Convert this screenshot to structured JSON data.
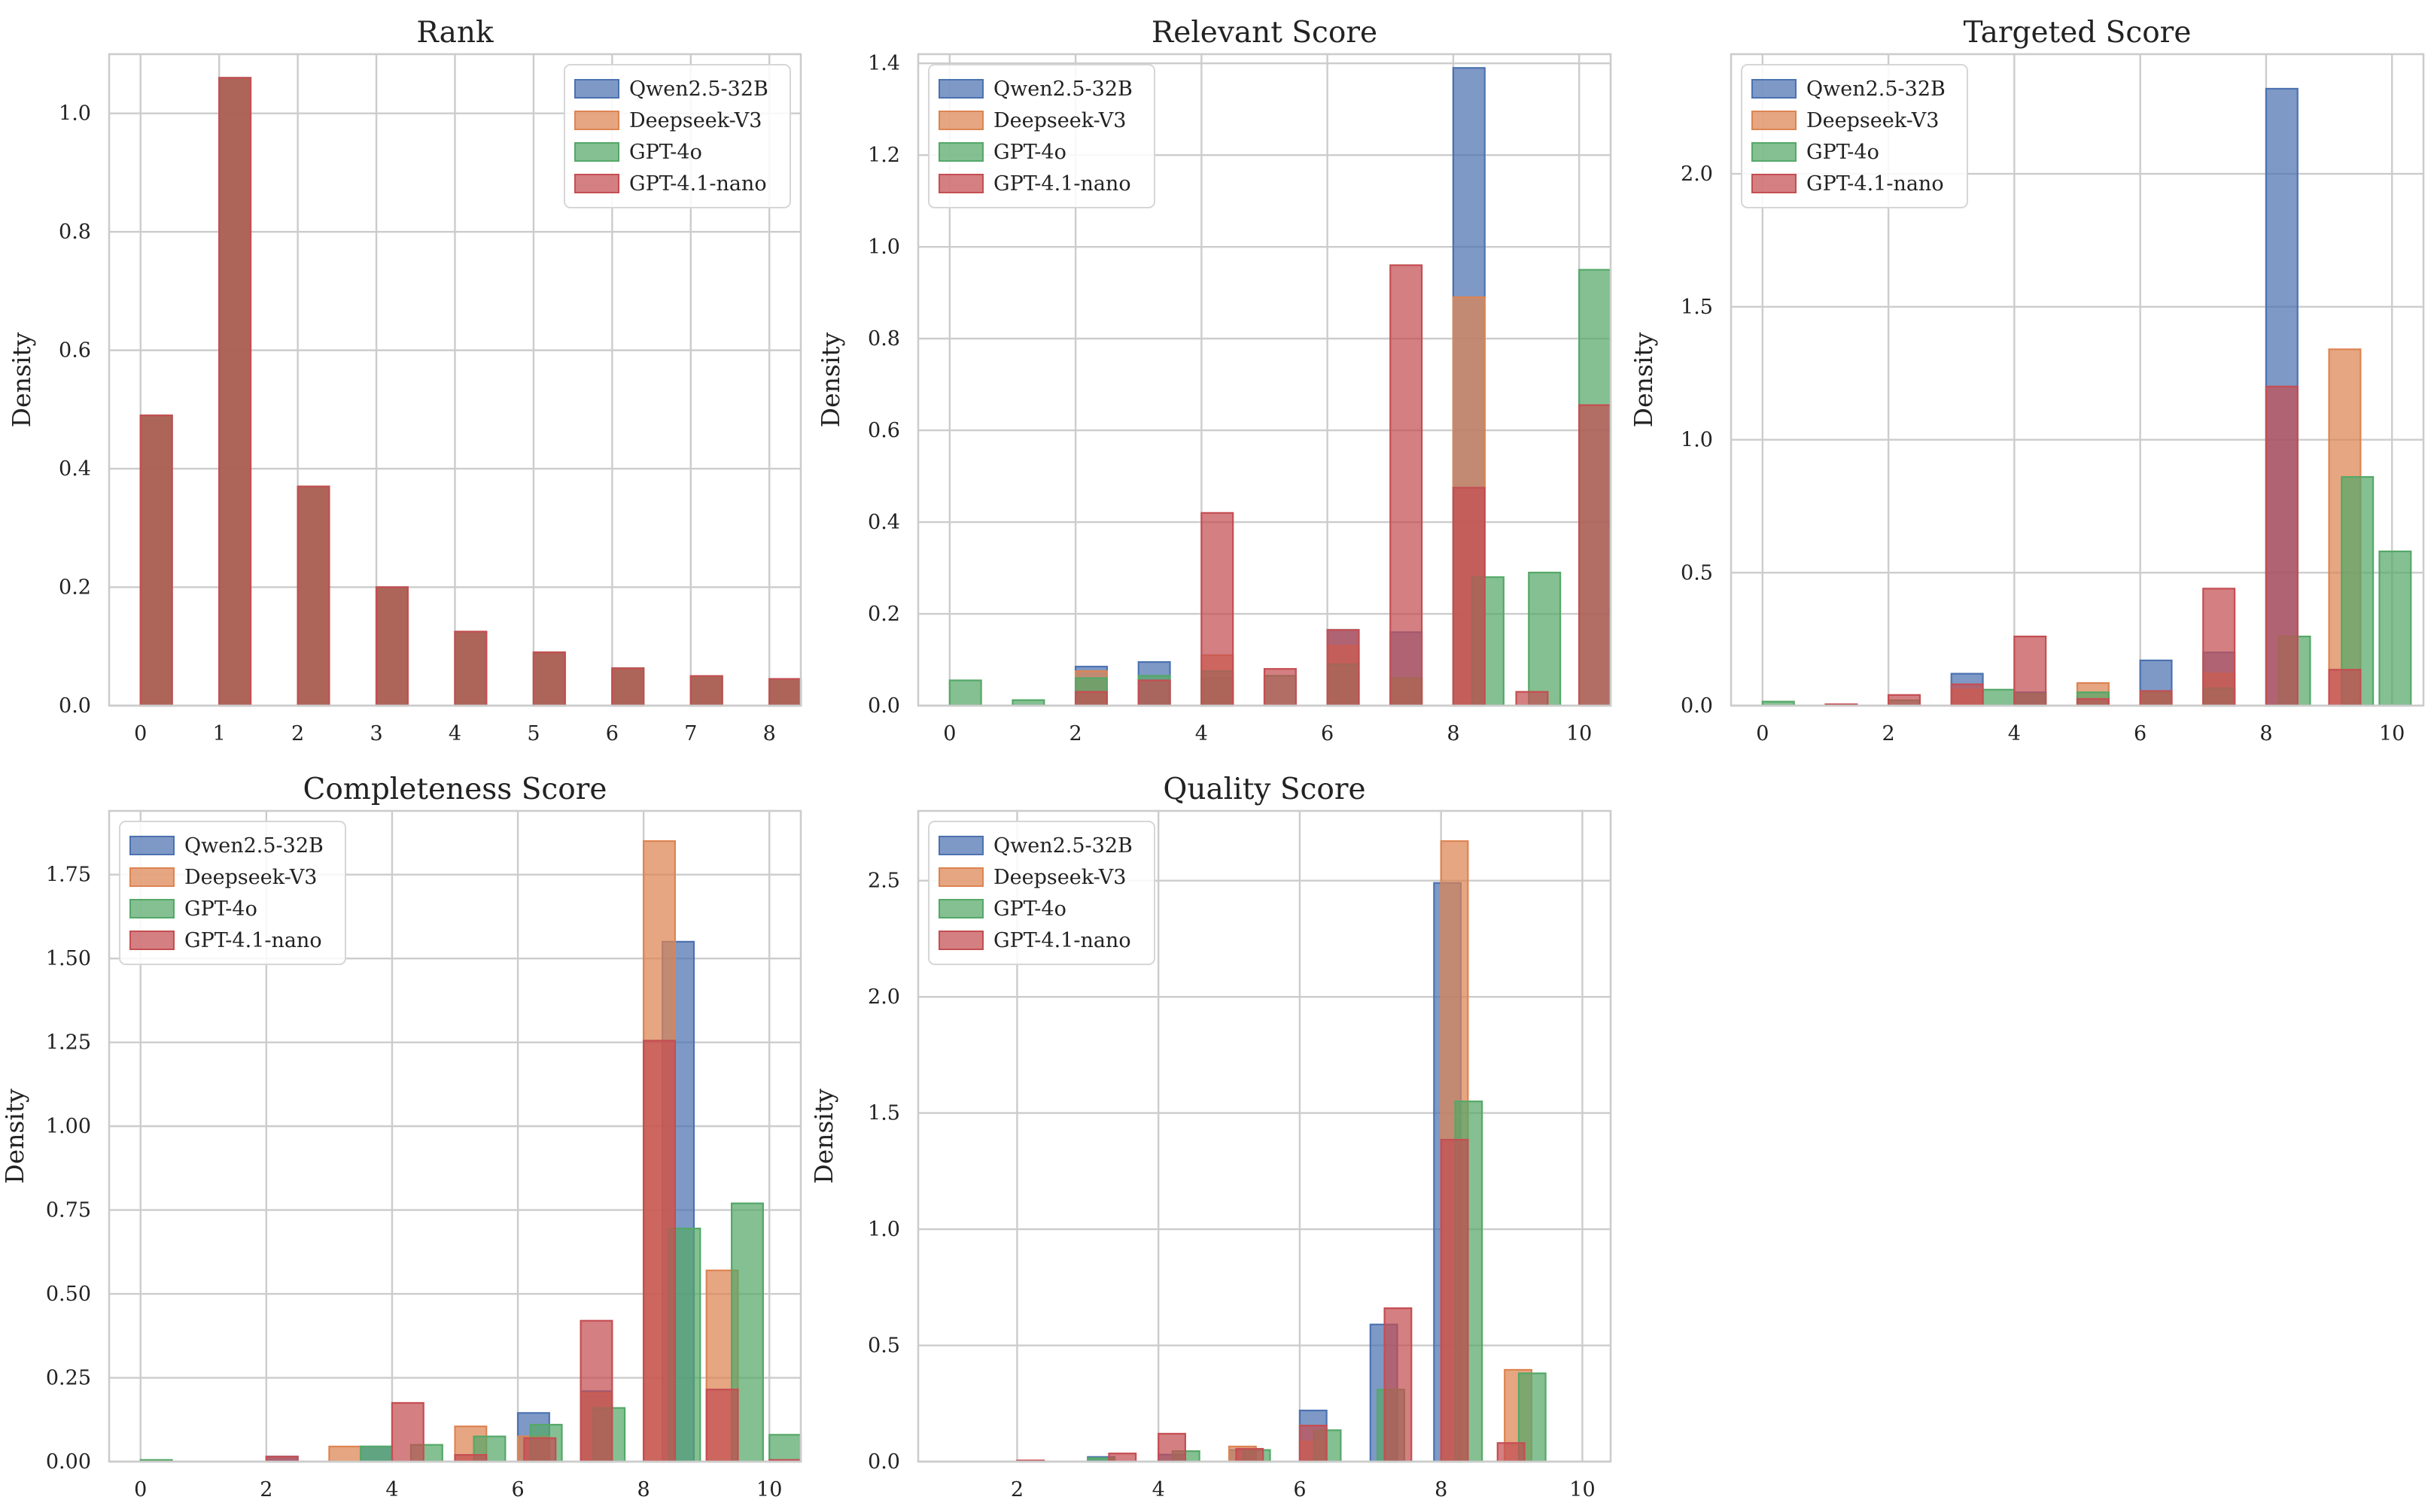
{
  "colors": {
    "Qwen2.5-32B": "#4c72b0",
    "Deepseek-V3": "#dd8452",
    "GPT-4o": "#55a868",
    "GPT-4.1-nano": "#c44e52",
    "grid": "#cccccc",
    "background": "#ffffff"
  },
  "legend_labels": [
    "Qwen2.5-32B",
    "Deepseek-V3",
    "GPT-4o",
    "GPT-4.1-nano"
  ],
  "chart_data": [
    {
      "type": "bar",
      "title": "Rank",
      "xlabel": "",
      "ylabel": "Density",
      "xlim": [
        -0.4,
        8.4
      ],
      "ylim": [
        0,
        1.1
      ],
      "xticks": [
        0,
        1,
        2,
        3,
        4,
        5,
        6,
        7,
        8
      ],
      "yticks": [
        0.0,
        0.2,
        0.4,
        0.6,
        0.8,
        1.0
      ],
      "ytick_labels": [
        "0.0",
        "0.2",
        "0.4",
        "0.6",
        "0.8",
        "1.0"
      ],
      "legend": "top-right",
      "bin_width": 0.4,
      "series": [
        {
          "name": "Qwen2.5-32B",
          "x": [
            0,
            1,
            2,
            3,
            4,
            5,
            6,
            7,
            8
          ],
          "values": [
            0.49,
            1.06,
            0.37,
            0.2,
            0.125,
            0.09,
            0.063,
            0.05,
            0.045
          ]
        },
        {
          "name": "Deepseek-V3",
          "x": [
            0,
            1,
            2,
            3,
            4,
            5,
            6,
            7,
            8
          ],
          "values": [
            0.49,
            1.06,
            0.37,
            0.2,
            0.125,
            0.09,
            0.063,
            0.05,
            0.045
          ]
        },
        {
          "name": "GPT-4o",
          "x": [
            0,
            1,
            2,
            3,
            4,
            5,
            6,
            7,
            8
          ],
          "values": [
            0.49,
            1.06,
            0.37,
            0.2,
            0.125,
            0.09,
            0.063,
            0.05,
            0.045
          ]
        },
        {
          "name": "GPT-4.1-nano",
          "x": [
            0,
            1,
            2,
            3,
            4,
            5,
            6,
            7,
            8
          ],
          "values": [
            0.49,
            1.06,
            0.37,
            0.2,
            0.125,
            0.09,
            0.063,
            0.05,
            0.045
          ]
        }
      ]
    },
    {
      "type": "bar",
      "title": "Relevant Score",
      "xlabel": "",
      "ylabel": "Density",
      "xlim": [
        -0.5,
        10.5
      ],
      "ylim": [
        0,
        1.42
      ],
      "xticks": [
        0,
        2,
        4,
        6,
        8,
        10
      ],
      "yticks": [
        0.0,
        0.2,
        0.4,
        0.6,
        0.8,
        1.0,
        1.2,
        1.4
      ],
      "ytick_labels": [
        "0.0",
        "0.2",
        "0.4",
        "0.6",
        "0.8",
        "1.0",
        "1.2",
        "1.4"
      ],
      "legend": "top-left",
      "bin_width": 0.5,
      "series": [
        {
          "name": "Qwen2.5-32B",
          "x": [
            2,
            3,
            4,
            6,
            7,
            8
          ],
          "values": [
            0.085,
            0.095,
            0.06,
            0.165,
            0.16,
            1.39
          ]
        },
        {
          "name": "Deepseek-V3",
          "x": [
            2,
            4,
            6,
            7,
            8
          ],
          "values": [
            0.075,
            0.11,
            0.13,
            0.06,
            0.89
          ]
        },
        {
          "name": "GPT-4o",
          "x": [
            0,
            1,
            2,
            3,
            4,
            5,
            6,
            7,
            8.3,
            9.2,
            10
          ],
          "values": [
            0.055,
            0.012,
            0.06,
            0.065,
            0.075,
            0.065,
            0.09,
            0.06,
            0.28,
            0.29,
            0.95
          ]
        },
        {
          "name": "GPT-4.1-nano",
          "x": [
            2,
            3,
            4,
            5,
            6,
            7,
            8,
            9,
            10
          ],
          "values": [
            0.03,
            0.055,
            0.42,
            0.08,
            0.165,
            0.96,
            0.475,
            0.03,
            0.655
          ]
        }
      ]
    },
    {
      "type": "bar",
      "title": "Targeted Score",
      "xlabel": "",
      "ylabel": "Density",
      "xlim": [
        -0.5,
        10.5
      ],
      "ylim": [
        0,
        2.45
      ],
      "xticks": [
        0,
        2,
        4,
        6,
        8,
        10
      ],
      "yticks": [
        0.0,
        0.5,
        1.0,
        1.5,
        2.0
      ],
      "ytick_labels": [
        "0.0",
        "0.5",
        "1.0",
        "1.5",
        "2.0"
      ],
      "legend": "top-left",
      "bin_width": 0.5,
      "series": [
        {
          "name": "Qwen2.5-32B",
          "x": [
            3,
            4,
            6,
            7,
            8
          ],
          "values": [
            0.12,
            0.05,
            0.17,
            0.2,
            2.32
          ]
        },
        {
          "name": "Deepseek-V3",
          "x": [
            3,
            5,
            6,
            7,
            9
          ],
          "values": [
            0.06,
            0.085,
            0.05,
            0.12,
            1.34
          ]
        },
        {
          "name": "GPT-4o",
          "x": [
            0,
            2,
            3.5,
            4,
            5,
            6,
            7,
            8.2,
            9.2,
            9.8
          ],
          "values": [
            0.015,
            0.02,
            0.06,
            0.045,
            0.05,
            0.05,
            0.065,
            0.26,
            0.86,
            0.58
          ]
        },
        {
          "name": "GPT-4.1-nano",
          "x": [
            1,
            2,
            3,
            4,
            5,
            6,
            7,
            8,
            9
          ],
          "values": [
            0.005,
            0.04,
            0.08,
            0.26,
            0.025,
            0.055,
            0.44,
            1.2,
            0.135
          ]
        }
      ]
    },
    {
      "type": "bar",
      "title": "Completeness Score",
      "xlabel": "",
      "ylabel": "Density",
      "xlim": [
        -0.5,
        10.5
      ],
      "ylim": [
        0,
        1.94
      ],
      "xticks": [
        0,
        2,
        4,
        6,
        8,
        10
      ],
      "yticks": [
        0.0,
        0.25,
        0.5,
        0.75,
        1.0,
        1.25,
        1.5,
        1.75
      ],
      "ytick_labels": [
        "0.00",
        "0.25",
        "0.50",
        "0.75",
        "1.00",
        "1.25",
        "1.50",
        "1.75"
      ],
      "legend": "top-left",
      "bin_width": 0.5,
      "series": [
        {
          "name": "Qwen2.5-32B",
          "x": [
            2,
            3.5,
            6,
            7,
            8.3
          ],
          "values": [
            0.015,
            0.045,
            0.145,
            0.21,
            1.55
          ]
        },
        {
          "name": "Deepseek-V3",
          "x": [
            3,
            5,
            6,
            7,
            8,
            9
          ],
          "values": [
            0.045,
            0.105,
            0.075,
            0.205,
            1.85,
            0.57
          ]
        },
        {
          "name": "GPT-4o",
          "x": [
            0,
            3.5,
            4.3,
            5.3,
            6.2,
            7.2,
            8.4,
            9.4,
            10
          ],
          "values": [
            0.005,
            0.045,
            0.05,
            0.075,
            0.11,
            0.16,
            0.695,
            0.77,
            0.08
          ]
        },
        {
          "name": "GPT-4.1-nano",
          "x": [
            2,
            4,
            5,
            6.1,
            7,
            8,
            9,
            10
          ],
          "values": [
            0.015,
            0.175,
            0.02,
            0.07,
            0.42,
            1.255,
            0.215,
            0.005
          ]
        }
      ]
    },
    {
      "type": "bar",
      "title": "Quality Score",
      "xlabel": "",
      "ylabel": "Density",
      "xlim": [
        0.6,
        10.4
      ],
      "ylim": [
        0,
        2.8
      ],
      "xticks": [
        2,
        4,
        6,
        8,
        10
      ],
      "yticks": [
        0.0,
        0.5,
        1.0,
        1.5,
        2.0,
        2.5
      ],
      "ytick_labels": [
        "0.0",
        "0.5",
        "1.0",
        "1.5",
        "2.0",
        "2.5"
      ],
      "legend": "top-left",
      "bin_width": 0.38,
      "series": [
        {
          "name": "Qwen2.5-32B",
          "x": [
            3,
            4,
            5,
            6,
            7,
            7.9
          ],
          "values": [
            0.02,
            0.03,
            0.05,
            0.22,
            0.59,
            2.49
          ]
        },
        {
          "name": "Deepseek-V3",
          "x": [
            5,
            6,
            8,
            8.9
          ],
          "values": [
            0.065,
            0.085,
            2.67,
            0.395
          ]
        },
        {
          "name": "GPT-4o",
          "x": [
            3,
            4.2,
            5.2,
            6.2,
            7.1,
            8.2,
            9.1
          ],
          "values": [
            0.015,
            0.045,
            0.05,
            0.135,
            0.31,
            1.55,
            0.38
          ]
        },
        {
          "name": "GPT-4.1-nano",
          "x": [
            2,
            3.3,
            4,
            5.1,
            6,
            7.2,
            8,
            8.8
          ],
          "values": [
            0.005,
            0.035,
            0.12,
            0.055,
            0.155,
            0.66,
            1.385,
            0.08
          ]
        }
      ]
    }
  ]
}
